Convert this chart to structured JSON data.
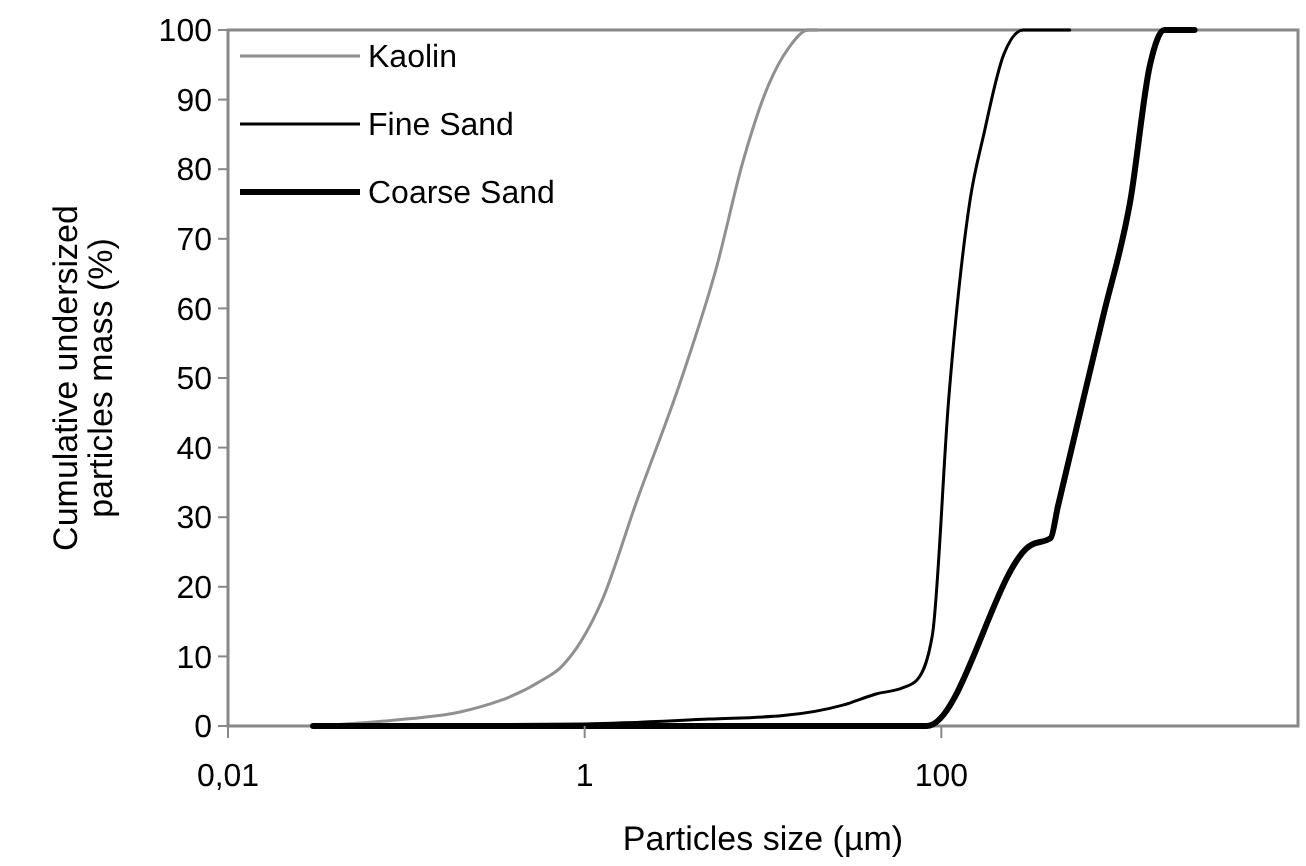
{
  "chart_data": {
    "type": "line",
    "xlabel": "Particles size (µm)",
    "ylabel": "Cumulative undersized particles mass (%)",
    "log": "x",
    "xlim": [
      0.01,
      10000
    ],
    "xticks": [
      {
        "value": 0.01,
        "label": "0,01"
      },
      1,
      100
    ],
    "ylim": [
      0,
      100
    ],
    "yticks": [
      0,
      10,
      20,
      30,
      40,
      50,
      60,
      70,
      80,
      90,
      100
    ],
    "grid": false,
    "legend": "top left",
    "line_style": "solid",
    "series": [
      {
        "name": "Kaolin",
        "color": "#909090",
        "x": [
          0.03,
          0.1,
          0.2,
          0.57,
          0.74,
          1.25,
          1.94,
          3.5,
          5.5,
          7.7,
          10.7,
          14,
          18,
          20
        ],
        "values": [
          0,
          1,
          2,
          6.5,
          8.5,
          18,
          32,
          50,
          66,
          81,
          92,
          97.5,
          100,
          100
        ]
      },
      {
        "name": "Fine Sand",
        "color": "#000000",
        "x": [
          0.03,
          1,
          5,
          13,
          28,
          43,
          61,
          73,
          89,
          110,
          145,
          173,
          224,
          288,
          525
        ],
        "values": [
          0,
          0.3,
          1,
          1.5,
          3,
          4.6,
          5.5,
          6.6,
          13,
          47,
          75.6,
          85,
          96.5,
          100,
          100
        ]
      },
      {
        "name": "Coarse Sand",
        "color": "#000000",
        "x": [
          0.03,
          83,
          318,
          410,
          450,
          810,
          1150,
          1480,
          1780,
          2630
        ],
        "values": [
          0,
          0,
          26,
          27,
          31.5,
          59,
          75.6,
          95,
          100,
          100
        ]
      }
    ]
  }
}
